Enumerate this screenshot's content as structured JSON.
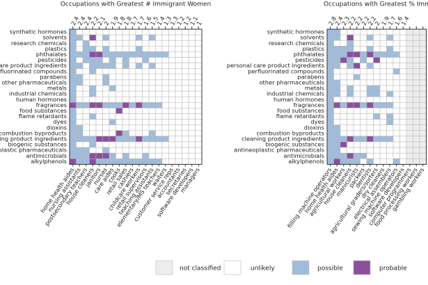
{
  "panels": [
    {
      "title": "Occupations with Greatest # Immigrant Women",
      "rows": [
        "synthetic hormones",
        "solvents",
        "research chemicals",
        "plastics",
        "phthalates",
        "pesticides",
        "personal care product ingredients",
        "perfluorinated compounds",
        "parabens",
        "other pharmaceuticals",
        "metals",
        "industrial chemicals",
        "human hormones",
        "fragrances",
        "food substances",
        "flame retardants",
        "dyes",
        "dioxins",
        "combustion byproducts",
        "cleaning product ingredients",
        "biogenic substances",
        "antineoplastic pharmaceuticals",
        "antimicrobials",
        "alkylphenols"
      ],
      "columns": [
        "home health aides",
        "nursing assistants",
        "postsecondary teachers",
        "house cleaners",
        "janitors",
        "nurses",
        "care aides",
        "cooks",
        "retail sales",
        "cashiers",
        "childcare workers",
        "retail supervisors",
        "teaching assistants",
        "elementary/MS teachers",
        "waiters",
        "customer service reps",
        "accountants",
        "secretaries",
        "software developers",
        "managers"
      ],
      "column_values": [
        2.4,
        2.4,
        2.4,
        2.2,
        2.1,
        2,
        1.9,
        1.8,
        1.8,
        1.7,
        1.7,
        1.6,
        1.5,
        1.4,
        1.3,
        1.3,
        1.2,
        1.2,
        1.1,
        1
      ],
      "cells": [
        [
          2,
          1,
          1,
          1,
          1,
          1,
          1,
          1,
          1,
          1,
          1,
          1,
          1,
          1,
          1,
          1,
          1,
          1,
          1,
          1
        ],
        [
          2,
          2,
          1,
          3,
          1,
          2,
          1,
          1,
          1,
          1,
          2,
          1,
          2,
          1,
          1,
          1,
          1,
          1,
          1,
          1
        ],
        [
          2,
          1,
          2,
          1,
          1,
          1,
          1,
          1,
          1,
          1,
          1,
          1,
          1,
          1,
          1,
          1,
          1,
          1,
          1,
          1
        ],
        [
          2,
          1,
          2,
          2,
          1,
          2,
          1,
          1,
          1,
          1,
          2,
          1,
          1,
          1,
          1,
          1,
          1,
          1,
          1,
          1
        ],
        [
          2,
          2,
          2,
          3,
          3,
          2,
          2,
          2,
          2,
          2,
          2,
          2,
          2,
          2,
          2,
          1,
          1,
          1,
          1,
          1
        ],
        [
          2,
          1,
          2,
          2,
          2,
          1,
          2,
          1,
          2,
          1,
          1,
          2,
          1,
          1,
          1,
          1,
          1,
          1,
          1,
          1
        ],
        [
          2,
          2,
          1,
          2,
          2,
          2,
          2,
          1,
          2,
          1,
          2,
          1,
          2,
          1,
          1,
          1,
          1,
          1,
          1,
          1
        ],
        [
          2,
          1,
          1,
          2,
          1,
          1,
          1,
          1,
          1,
          1,
          1,
          1,
          1,
          1,
          1,
          1,
          1,
          1,
          1,
          1
        ],
        [
          2,
          2,
          1,
          1,
          1,
          2,
          1,
          1,
          1,
          1,
          1,
          1,
          1,
          1,
          1,
          1,
          1,
          1,
          1,
          1
        ],
        [
          2,
          2,
          1,
          1,
          1,
          2,
          1,
          1,
          1,
          1,
          1,
          1,
          1,
          1,
          1,
          1,
          1,
          1,
          1,
          1
        ],
        [
          2,
          1,
          1,
          2,
          1,
          1,
          2,
          1,
          1,
          1,
          1,
          1,
          1,
          1,
          1,
          1,
          1,
          1,
          1,
          1
        ],
        [
          2,
          1,
          1,
          2,
          1,
          1,
          1,
          1,
          1,
          1,
          1,
          1,
          1,
          1,
          1,
          1,
          1,
          1,
          1,
          1
        ],
        [
          2,
          1,
          1,
          1,
          1,
          1,
          1,
          1,
          1,
          1,
          1,
          1,
          1,
          1,
          1,
          1,
          1,
          1,
          1,
          1
        ],
        [
          3,
          2,
          2,
          3,
          3,
          2,
          2,
          2,
          3,
          2,
          3,
          2,
          2,
          2,
          1,
          1,
          1,
          1,
          1,
          1
        ],
        [
          2,
          1,
          1,
          1,
          1,
          1,
          1,
          3,
          1,
          1,
          1,
          1,
          1,
          1,
          1,
          1,
          1,
          1,
          1,
          1
        ],
        [
          2,
          1,
          1,
          2,
          1,
          1,
          1,
          1,
          1,
          1,
          1,
          1,
          1,
          1,
          1,
          1,
          1,
          1,
          1,
          1
        ],
        [
          2,
          1,
          1,
          1,
          1,
          1,
          2,
          1,
          1,
          1,
          1,
          1,
          1,
          1,
          1,
          1,
          1,
          1,
          1,
          1
        ],
        [
          2,
          2,
          1,
          1,
          1,
          1,
          1,
          1,
          1,
          1,
          1,
          1,
          1,
          1,
          1,
          1,
          1,
          1,
          1,
          1
        ],
        [
          2,
          2,
          1,
          1,
          1,
          1,
          1,
          3,
          2,
          1,
          1,
          1,
          2,
          1,
          1,
          1,
          1,
          1,
          1,
          1
        ],
        [
          2,
          2,
          2,
          2,
          3,
          3,
          3,
          2,
          2,
          2,
          3,
          2,
          2,
          2,
          2,
          1,
          1,
          1,
          1,
          1
        ],
        [
          2,
          1,
          1,
          2,
          1,
          1,
          1,
          1,
          1,
          1,
          1,
          1,
          1,
          1,
          1,
          1,
          1,
          1,
          1,
          1
        ],
        [
          2,
          2,
          2,
          1,
          1,
          2,
          1,
          1,
          1,
          1,
          1,
          1,
          1,
          1,
          1,
          1,
          1,
          1,
          1,
          1
        ],
        [
          2,
          2,
          2,
          3,
          3,
          3,
          2,
          1,
          2,
          1,
          1,
          2,
          1,
          1,
          1,
          1,
          1,
          1,
          1,
          1
        ],
        [
          3,
          2,
          2,
          3,
          2,
          2,
          2,
          2,
          2,
          2,
          2,
          2,
          2,
          2,
          1,
          1,
          1,
          1,
          1,
          1
        ]
      ]
    },
    {
      "title": "Occupations with Greatest % Immigrant Women",
      "rows": [
        "synthetic hormones",
        "solvents",
        "research chemicals",
        "plastics",
        "phthalates",
        "pesticides",
        "personal care product ingredients",
        "perfluorinated compounds",
        "parabens",
        "other pharmaceuticals",
        "metals",
        "industrial chemicals",
        "human hormones",
        "fragrances",
        "food substances",
        "flame retardants",
        "dyes",
        "dioxins",
        "combustion byproducts",
        "cleaning product ingredients",
        "biogenic substances",
        "antineoplastic pharmaceuticals",
        "antimicrobials",
        "alkylphenols"
      ],
      "columns": [
        "filling machine operators",
        "home health aides",
        "agricultural workers",
        "house cleaners",
        "manicurists",
        "packers",
        "dentists",
        "agricultural graders/sorters",
        "dry cleaners",
        "electrical assemblers",
        "sewing machine operators",
        "software developers",
        "computer programmers",
        "food processing workers",
        "gambling workers"
      ],
      "column_values": [
        2.8,
        2.4,
        2.3,
        2.2,
        2.2,
        2.2,
        2.2,
        2,
        1.9,
        1.7,
        1.6,
        1.4,
        null,
        null,
        null
      ],
      "cells": [
        [
          2,
          2,
          1,
          1,
          1,
          1,
          1,
          1,
          1,
          1,
          1,
          1,
          0,
          0,
          0
        ],
        [
          2,
          2,
          1,
          3,
          1,
          1,
          2,
          1,
          1,
          2,
          1,
          1,
          0,
          0,
          0
        ],
        [
          2,
          1,
          1,
          2,
          1,
          1,
          1,
          1,
          1,
          1,
          1,
          1,
          0,
          0,
          0
        ],
        [
          2,
          2,
          2,
          2,
          1,
          1,
          2,
          1,
          1,
          2,
          1,
          1,
          0,
          0,
          0
        ],
        [
          2,
          2,
          2,
          3,
          3,
          2,
          3,
          2,
          2,
          2,
          2,
          1,
          0,
          0,
          0
        ],
        [
          2,
          2,
          3,
          2,
          1,
          2,
          1,
          3,
          1,
          1,
          1,
          1,
          0,
          0,
          0
        ],
        [
          2,
          2,
          1,
          2,
          3,
          1,
          2,
          1,
          1,
          1,
          1,
          1,
          0,
          0,
          0
        ],
        [
          2,
          1,
          1,
          1,
          1,
          1,
          1,
          1,
          1,
          1,
          2,
          1,
          0,
          0,
          0
        ],
        [
          2,
          1,
          1,
          1,
          2,
          1,
          1,
          1,
          1,
          1,
          1,
          1,
          0,
          0,
          0
        ],
        [
          2,
          2,
          1,
          1,
          1,
          1,
          1,
          1,
          1,
          1,
          1,
          1,
          0,
          0,
          0
        ],
        [
          2,
          2,
          1,
          2,
          1,
          1,
          2,
          2,
          1,
          1,
          1,
          1,
          0,
          0,
          0
        ],
        [
          2,
          2,
          1,
          2,
          1,
          1,
          2,
          2,
          1,
          2,
          1,
          1,
          0,
          0,
          0
        ],
        [
          2,
          1,
          1,
          1,
          1,
          1,
          1,
          1,
          1,
          1,
          1,
          1,
          0,
          0,
          0
        ],
        [
          2,
          3,
          2,
          3,
          3,
          2,
          3,
          2,
          2,
          2,
          1,
          1,
          0,
          0,
          0
        ],
        [
          2,
          1,
          1,
          1,
          1,
          1,
          1,
          1,
          1,
          1,
          1,
          1,
          0,
          0,
          0
        ],
        [
          2,
          1,
          1,
          1,
          1,
          1,
          1,
          2,
          1,
          2,
          1,
          1,
          0,
          0,
          0
        ],
        [
          2,
          1,
          1,
          1,
          1,
          1,
          1,
          1,
          1,
          2,
          1,
          1,
          0,
          0,
          0
        ],
        [
          2,
          2,
          1,
          1,
          1,
          1,
          1,
          1,
          1,
          1,
          1,
          1,
          0,
          0,
          0
        ],
        [
          2,
          2,
          1,
          1,
          1,
          1,
          1,
          1,
          1,
          1,
          1,
          1,
          0,
          0,
          0
        ],
        [
          2,
          2,
          2,
          3,
          2,
          2,
          3,
          2,
          2,
          2,
          1,
          1,
          0,
          0,
          0
        ],
        [
          2,
          2,
          3,
          1,
          1,
          1,
          1,
          1,
          1,
          1,
          1,
          1,
          0,
          0,
          0
        ],
        [
          2,
          2,
          1,
          1,
          1,
          1,
          1,
          1,
          1,
          1,
          1,
          1,
          0,
          0,
          0
        ],
        [
          2,
          2,
          2,
          3,
          2,
          2,
          1,
          1,
          1,
          1,
          1,
          1,
          0,
          0,
          0
        ],
        [
          2,
          3,
          2,
          2,
          2,
          1,
          2,
          1,
          1,
          1,
          2,
          1,
          0,
          0,
          0
        ]
      ]
    }
  ],
  "legend": {
    "levels": [
      {
        "label": "not classified",
        "color": "#ededed"
      },
      {
        "label": "unlikely",
        "color": "#ffffff"
      },
      {
        "label": "possible",
        "color": "#a0bcdb"
      },
      {
        "label": "probable",
        "color": "#8b4f9f"
      }
    ]
  }
}
